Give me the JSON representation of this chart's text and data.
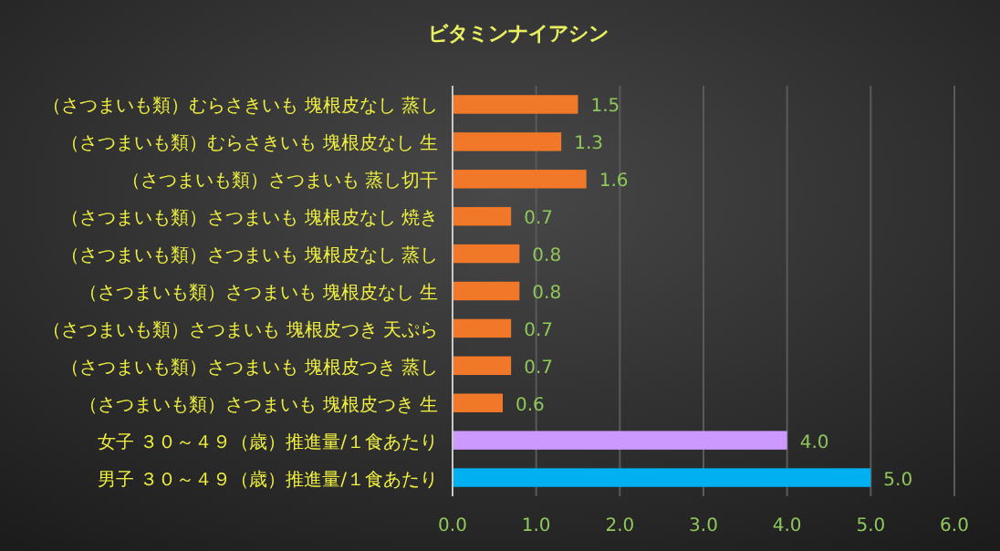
{
  "chart_data": {
    "type": "bar",
    "orientation": "horizontal",
    "title": "ビタミンナイアシン",
    "categories": [
      "（さつまいも類）むらさきいも 塊根皮なし 蒸し",
      "（さつまいも類）むらさきいも 塊根皮なし 生",
      "（さつまいも類）さつまいも 蒸し切干",
      "（さつまいも類）さつまいも 塊根皮なし 焼き",
      "（さつまいも類）さつまいも 塊根皮なし 蒸し",
      "（さつまいも類）さつまいも 塊根皮なし 生",
      "（さつまいも類）さつまいも 塊根皮つき 天ぷら",
      "（さつまいも類）さつまいも 塊根皮つき 蒸し",
      "（さつまいも類）さつまいも 塊根皮つき 生",
      "女子 ３０～４９（歳）推進量/１食あたり",
      "男子 ３０～４９（歳）推進量/１食あたり"
    ],
    "values": [
      1.5,
      1.3,
      1.6,
      0.7,
      0.8,
      0.8,
      0.7,
      0.7,
      0.6,
      4.0,
      5.0
    ],
    "value_labels": [
      "1.5",
      "1.3",
      "1.6",
      "0.7",
      "0.8",
      "0.8",
      "0.7",
      "0.7",
      "0.6",
      "4.0",
      "5.0"
    ],
    "colors": [
      "#f07828",
      "#f07828",
      "#f07828",
      "#f07828",
      "#f07828",
      "#f07828",
      "#f07828",
      "#f07828",
      "#f07828",
      "#cc99ff",
      "#00b0f0"
    ],
    "xlim": [
      0,
      6
    ],
    "xticks": [
      {
        "value": 0,
        "label": "0.0"
      },
      {
        "value": 1,
        "label": "1.0"
      },
      {
        "value": 2,
        "label": "2.0"
      },
      {
        "value": 3,
        "label": "3.0"
      },
      {
        "value": 4,
        "label": "4.0"
      },
      {
        "value": 5,
        "label": "5.0"
      },
      {
        "value": 6,
        "label": "6.0"
      }
    ],
    "grid": "x"
  }
}
